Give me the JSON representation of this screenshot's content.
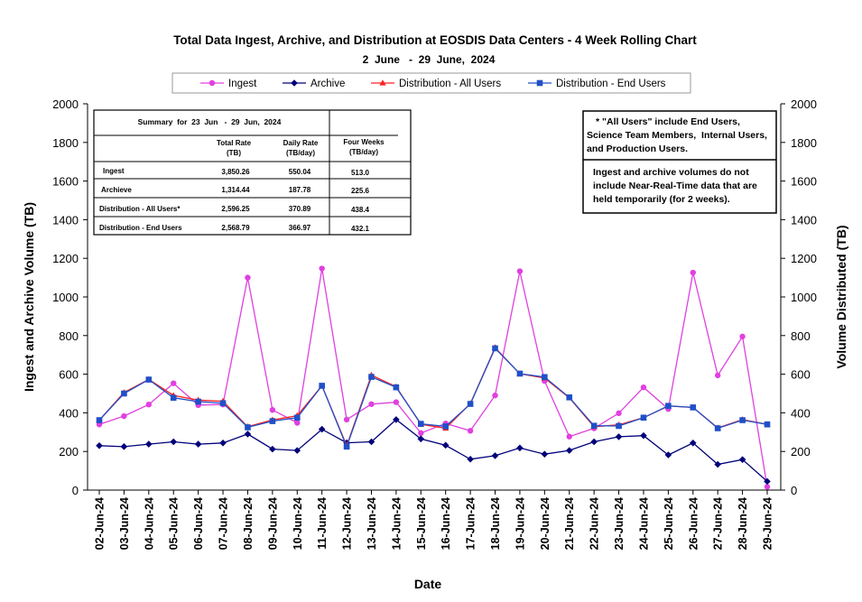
{
  "chart_data": {
    "type": "line",
    "title": "Total Data Ingest, Archive, and  Distribution at EOSDIS Data Centers - 4 Week Rolling Chart",
    "subtitle": "2  June   -  29  June,  2024",
    "xlabel": "Date",
    "ylabel_left": "Ingest and Archive Volume (TB)",
    "ylabel_right": "Volume Distributed (TB)",
    "ylim": [
      0,
      2000
    ],
    "yticks": [
      0,
      200,
      400,
      600,
      800,
      1000,
      1200,
      1400,
      1600,
      1800,
      2000
    ],
    "grid": false,
    "legend_position": "top",
    "categories": [
      "02-Jun-24",
      "03-Jun-24",
      "04-Jun-24",
      "05-Jun-24",
      "06-Jun-24",
      "07-Jun-24",
      "08-Jun-24",
      "09-Jun-24",
      "10-Jun-24",
      "11-Jun-24",
      "12-Jun-24",
      "13-Jun-24",
      "14-Jun-24",
      "15-Jun-24",
      "16-Jun-24",
      "17-Jun-24",
      "18-Jun-24",
      "19-Jun-24",
      "20-Jun-24",
      "21-Jun-24",
      "22-Jun-24",
      "23-Jun-24",
      "24-Jun-24",
      "25-Jun-24",
      "26-Jun-24",
      "27-Jun-24",
      "28-Jun-24",
      "29-Jun-24"
    ],
    "series": [
      {
        "name": "Ingest",
        "color": "#e040e0",
        "marker": "circle",
        "values": [
          340,
          383,
          443,
          553,
          440,
          443,
          1100,
          415,
          348,
          1147,
          365,
          445,
          455,
          295,
          345,
          307,
          490,
          1133,
          565,
          277,
          320,
          398,
          532,
          420,
          1126,
          594,
          795,
          17
        ]
      },
      {
        "name": "Archive",
        "color": "#00007a",
        "marker": "diamond",
        "values": [
          230,
          225,
          238,
          250,
          238,
          244,
          290,
          212,
          205,
          315,
          245,
          250,
          365,
          265,
          232,
          160,
          178,
          218,
          186,
          205,
          250,
          276,
          282,
          182,
          244,
          133,
          158,
          45
        ]
      },
      {
        "name": "Distribution - All Users",
        "color": "#ff2020",
        "marker": "triangle",
        "values": [
          362,
          505,
          573,
          490,
          466,
          460,
          328,
          363,
          385,
          540,
          230,
          595,
          535,
          340,
          320,
          448,
          738,
          602,
          580,
          478,
          328,
          338,
          375,
          435,
          428,
          322,
          365,
          340
        ]
      },
      {
        "name": "Distribution - End Users",
        "color": "#2050c8",
        "marker": "square",
        "values": [
          362,
          500,
          572,
          478,
          458,
          450,
          325,
          357,
          375,
          540,
          225,
          586,
          532,
          343,
          330,
          446,
          734,
          603,
          585,
          480,
          333,
          332,
          375,
          436,
          428,
          320,
          362,
          340
        ]
      }
    ]
  },
  "summary_table": {
    "title": "Summary  for  23  Jun   -  29  Jun,  2024",
    "col_total_line1": "Total Rate",
    "col_total_line2": "(TB)",
    "col_daily_line1": "Daily Rate",
    "col_daily_line2": "(TB/day)",
    "col_four_line1": "Four Weeks",
    "col_four_line2": "(TB/day)",
    "rows": [
      {
        "label": "Ingest",
        "total": "3,850.26",
        "daily": "550.04",
        "four": "513.0"
      },
      {
        "label": "Archieve",
        "total": "1,314.44",
        "daily": "187.78",
        "four": "225.6"
      },
      {
        "label": "Distribution - All Users*",
        "total": "2,596.25",
        "daily": "370.89",
        "four": "438.4"
      },
      {
        "label": "Distribution - End Users",
        "total": "2,568.79",
        "daily": "366.97",
        "four": "432.1"
      }
    ]
  },
  "notes": {
    "note1_line1": "* \"All Users\" include End Users,",
    "note1_line2": "Science Team Members,  Internal Users,",
    "note1_line3": "and Production Users.",
    "note2_line1": "Ingest and archive volumes do not",
    "note2_line2": "include Near-Real-Time data that are",
    "note2_line3": "held temporarily (for 2 weeks)."
  }
}
